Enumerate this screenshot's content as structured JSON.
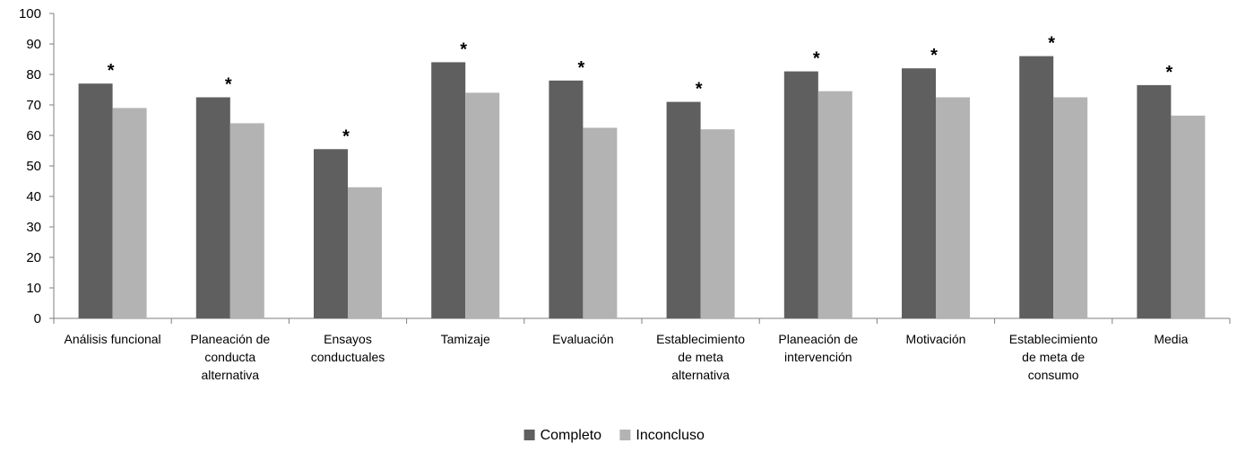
{
  "chart_data": {
    "type": "bar",
    "ylim": [
      0,
      100
    ],
    "yticks": [
      0,
      10,
      20,
      30,
      40,
      50,
      60,
      70,
      80,
      90,
      100
    ],
    "categories": [
      [
        "Análisis funcional"
      ],
      [
        "Planeación de",
        "conducta",
        "alternativa"
      ],
      [
        "Ensayos",
        "conductuales"
      ],
      [
        "Tamizaje"
      ],
      [
        "Evaluación"
      ],
      [
        "Establecimiento",
        "de meta",
        "alternativa"
      ],
      [
        "Planeación de",
        "intervención"
      ],
      [
        "Motivación"
      ],
      [
        "Establecimiento",
        "de meta de",
        "consumo"
      ],
      [
        "Media"
      ]
    ],
    "series": [
      {
        "name": "Completo",
        "color": "#5f5f5f",
        "values": [
          77,
          72.5,
          55.5,
          84,
          78,
          71,
          81,
          82,
          86,
          76.5
        ]
      },
      {
        "name": "Inconcluso",
        "color": "#b3b3b3",
        "values": [
          69,
          64,
          43,
          74,
          62.5,
          62,
          74.5,
          72.5,
          72.5,
          66.5
        ]
      }
    ],
    "significance_marker": "*",
    "significant": [
      true,
      true,
      true,
      true,
      true,
      true,
      true,
      true,
      true,
      true
    ],
    "legend_position": "bottom-center",
    "grid": false
  }
}
